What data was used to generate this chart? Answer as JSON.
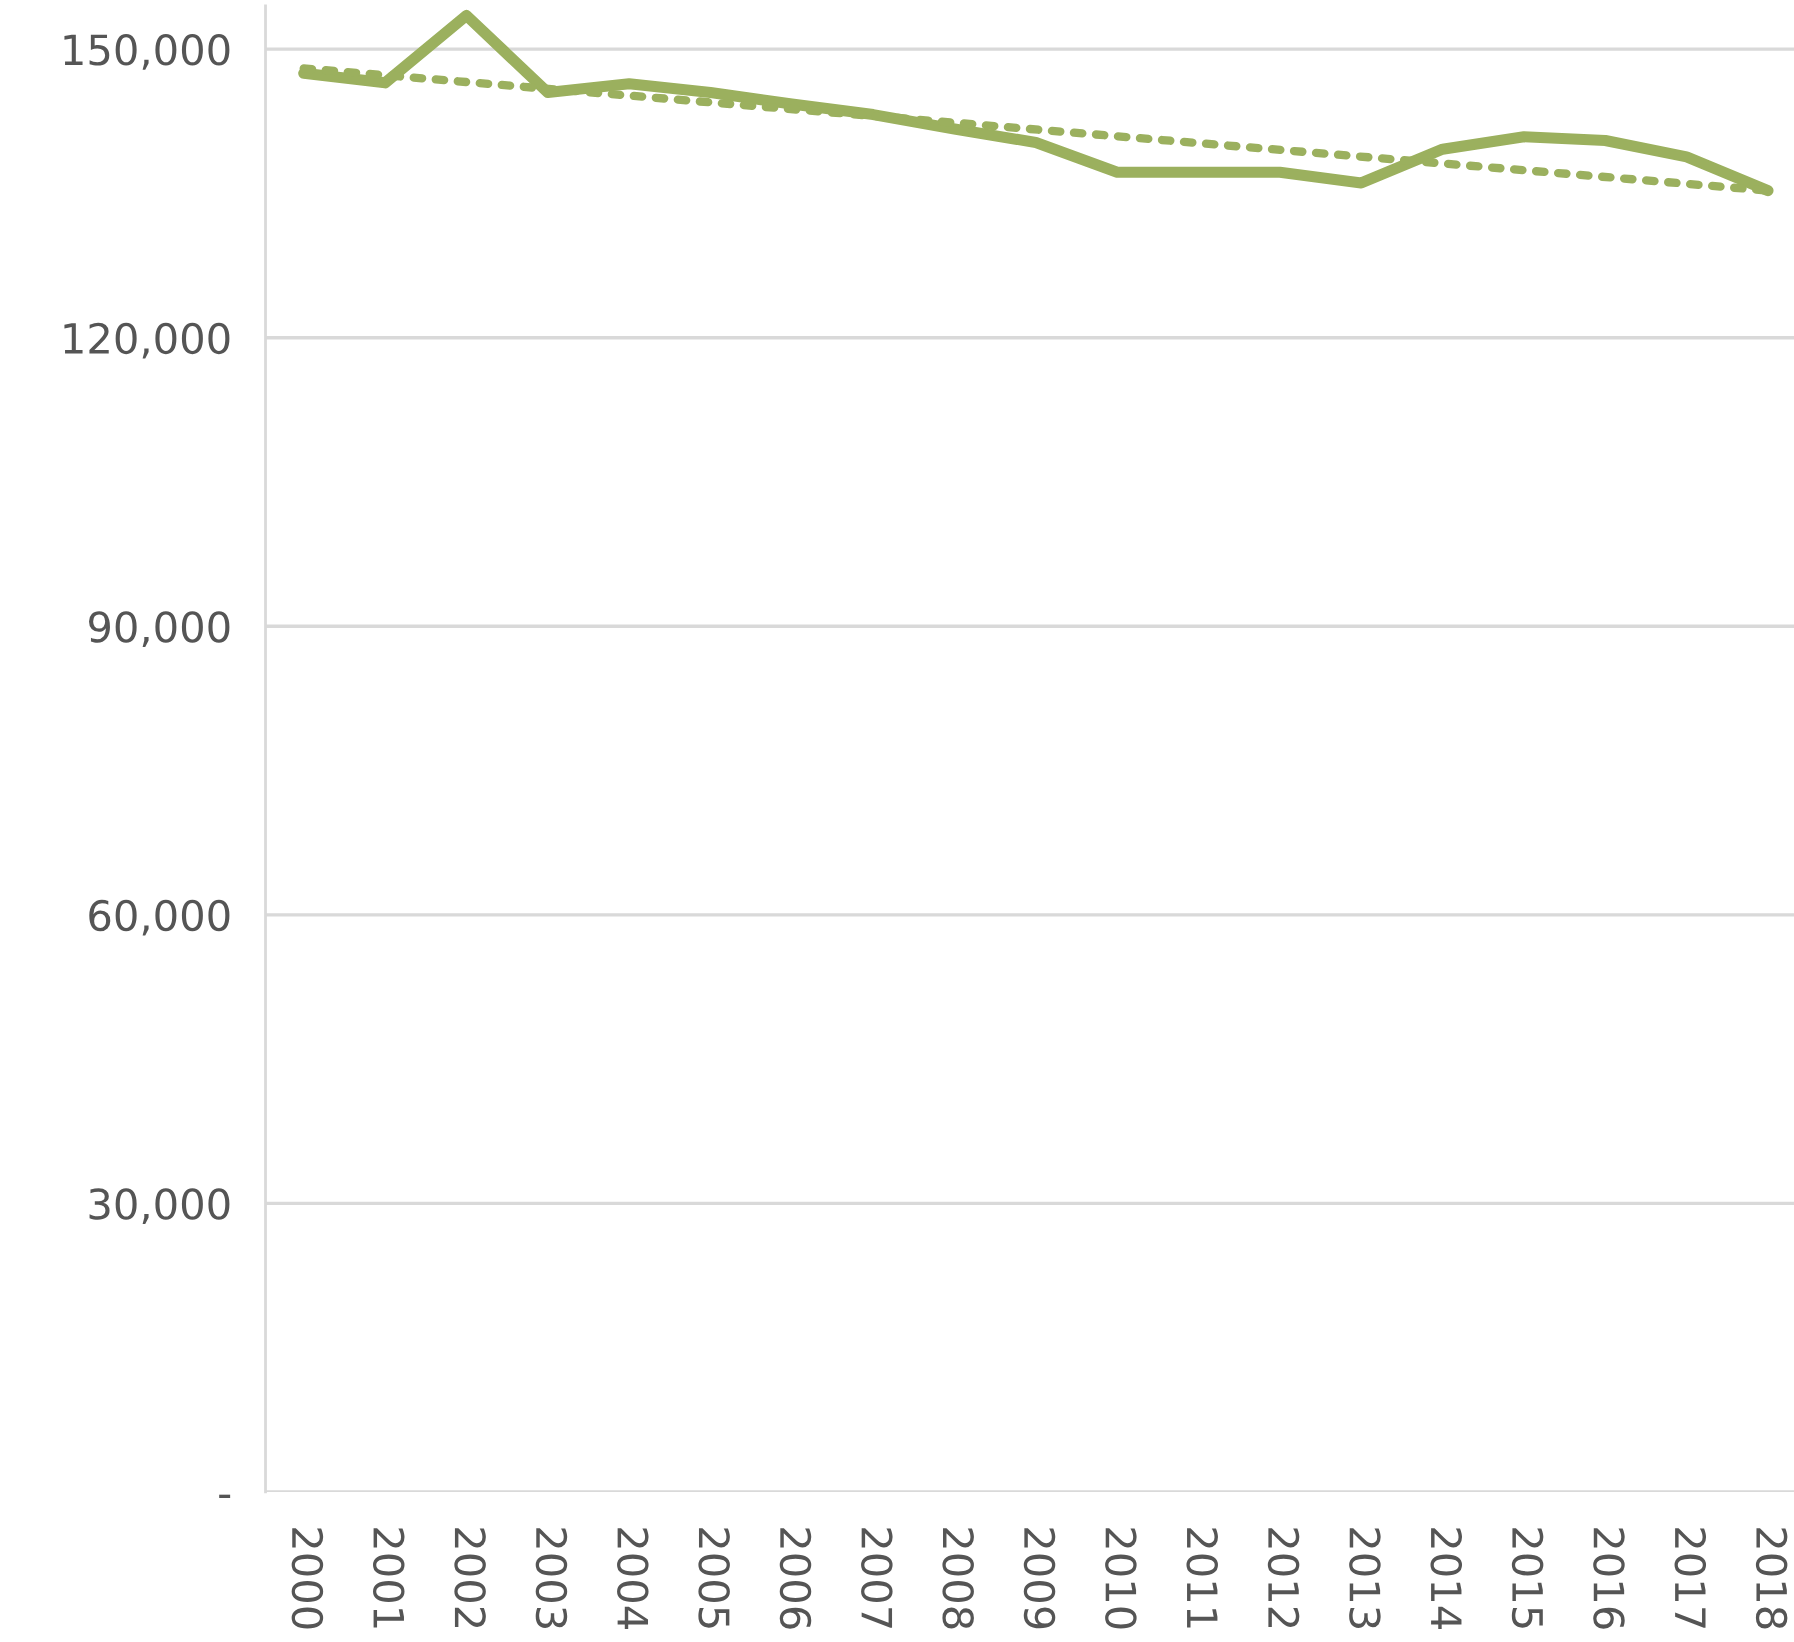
{
  "chart_data": {
    "type": "line",
    "x": [
      2000,
      2001,
      2002,
      2003,
      2004,
      2005,
      2006,
      2007,
      2008,
      2009,
      2010,
      2011,
      2012,
      2013,
      2014,
      2015,
      2016,
      2017,
      2018
    ],
    "series": [
      {
        "color": "#9bb05e",
        "values": [
          147500,
          146500,
          153500,
          145500,
          146400,
          145500,
          144300,
          143200,
          141700,
          140300,
          137200,
          137200,
          137200,
          136100,
          139600,
          140900,
          140500,
          138800,
          135300
        ],
        "line_style": "solid"
      },
      {
        "type": "line",
        "color": "#9bb05e",
        "x": [
          2000,
          2018
        ],
        "values": [
          148000,
          135300
        ],
        "line_style": "dotted"
      }
    ],
    "xlim": [
      1999.53,
      2018.32
    ],
    "xticks": [
      2000,
      2001,
      2002,
      2003,
      2004,
      2005,
      2006,
      2007,
      2008,
      2009,
      2010,
      2011,
      2012,
      2013,
      2014,
      2015,
      2016,
      2017,
      2018
    ],
    "ylim": [
      0,
      154500
    ],
    "yticks": [
      {
        "value": 0,
        "label": "-"
      },
      {
        "value": 30000,
        "label": "30,000"
      },
      {
        "value": 60000,
        "label": "60,000"
      },
      {
        "value": 90000,
        "label": "90,000"
      },
      {
        "value": 120000,
        "label": "120,000"
      },
      {
        "value": 150000,
        "label": "150,000"
      }
    ],
    "grid": "y",
    "legend": false,
    "marker": "none"
  }
}
